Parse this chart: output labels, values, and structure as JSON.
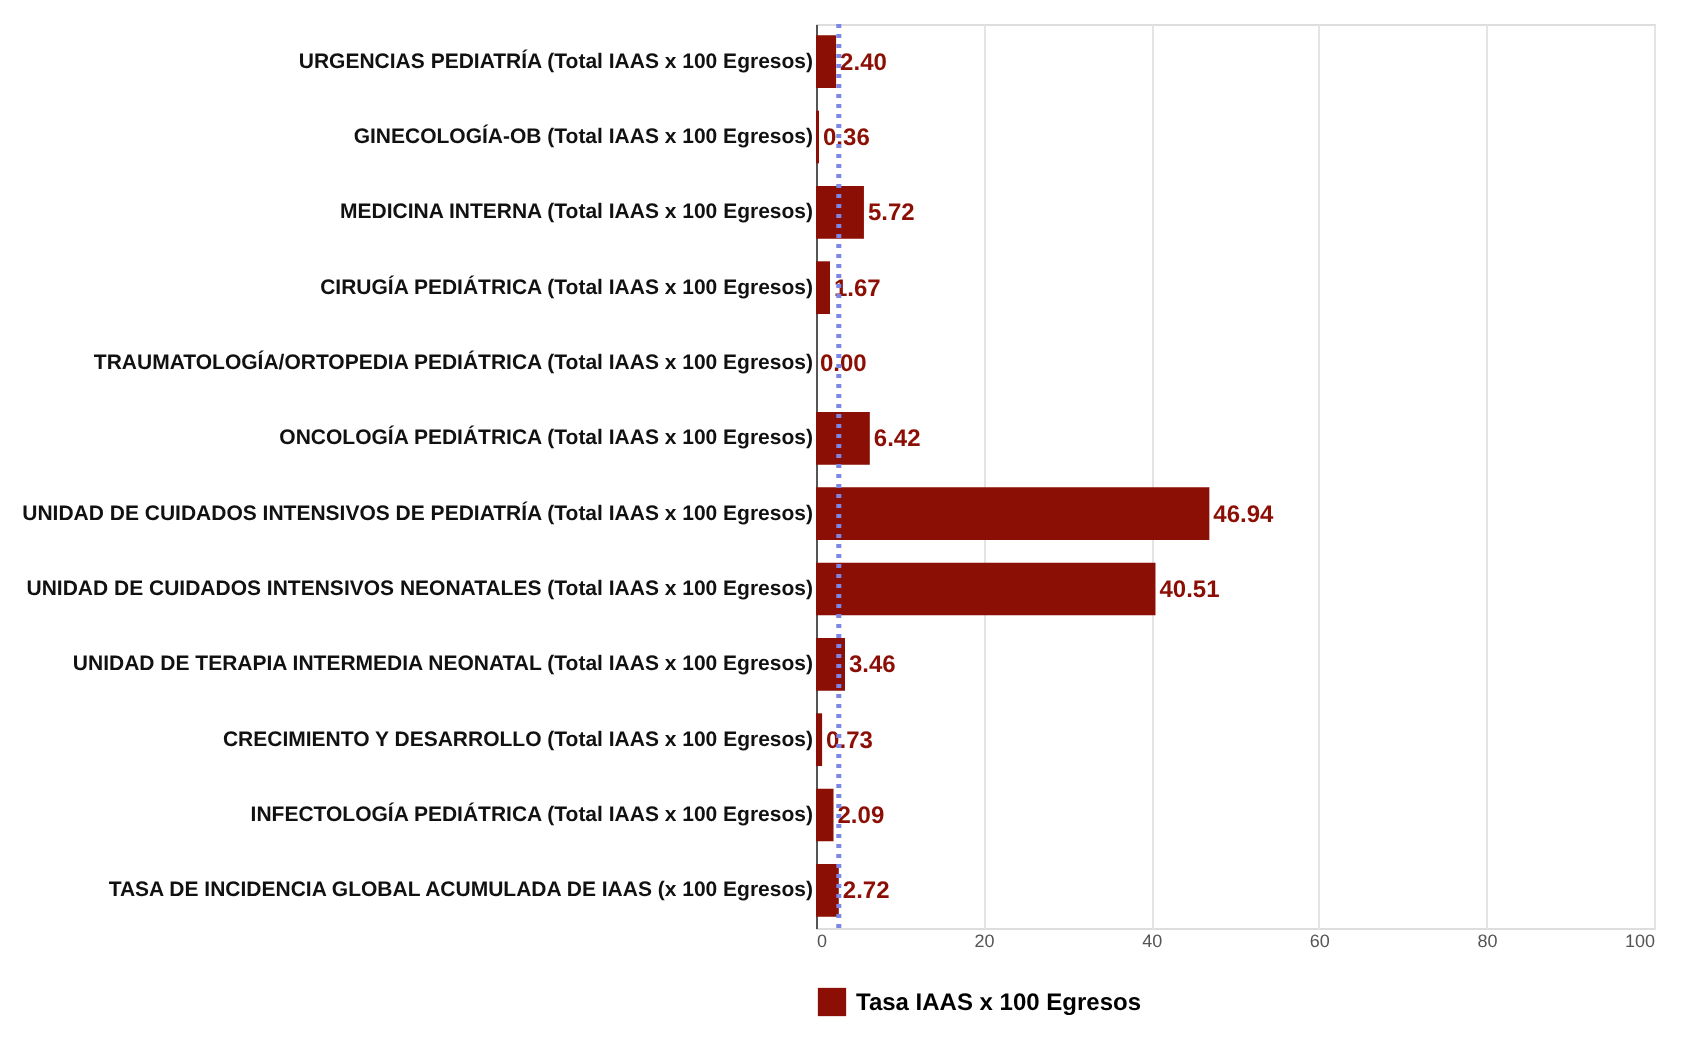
{
  "chart_data": {
    "type": "bar",
    "orientation": "horizontal",
    "categories": [
      "URGENCIAS PEDIATRÍA (Total IAAS x 100 Egresos)",
      "GINECOLOGÍA-OB (Total IAAS x 100 Egresos)",
      "MEDICINA INTERNA (Total IAAS x 100 Egresos)",
      "CIRUGÍA PEDIÁTRICA (Total IAAS x 100 Egresos)",
      "TRAUMATOLOGÍA/ORTOPEDIA PEDIÁTRICA (Total IAAS x 100 Egresos)",
      "ONCOLOGÍA PEDIÁTRICA (Total IAAS x 100 Egresos)",
      "UNIDAD DE CUIDADOS INTENSIVOS DE PEDIATRÍA (Total IAAS x 100 Egresos)",
      "UNIDAD DE CUIDADOS INTENSIVOS NEONATALES (Total IAAS x 100 Egresos)",
      "UNIDAD DE TERAPIA INTERMEDIA NEONATAL (Total IAAS x 100 Egresos)",
      "CRECIMIENTO Y DESARROLLO (Total IAAS x 100 Egresos)",
      "INFECTOLOGÍA PEDIÁTRICA (Total IAAS x 100 Egresos)",
      "TASA DE INCIDENCIA GLOBAL ACUMULADA DE IAAS (x 100 Egresos)"
    ],
    "series": [
      {
        "name": "Tasa IAAS x 100 Egresos",
        "color": "#8b0f05",
        "values": [
          2.4,
          0.36,
          5.72,
          1.67,
          0.0,
          6.42,
          46.94,
          40.51,
          3.46,
          0.73,
          2.09,
          2.72
        ],
        "value_labels": [
          "2.40",
          "0.36",
          "5.72",
          "1.67",
          "0.00",
          "6.42",
          "46.94",
          "40.51",
          "3.46",
          "0.73",
          "2.09",
          "2.72"
        ]
      }
    ],
    "xlim": [
      0,
      100
    ],
    "xticks": [
      0,
      20,
      40,
      60,
      80,
      100
    ],
    "ref_lines": [
      {
        "axis": "x",
        "value": 2.72,
        "color": "#7b86e8",
        "line_style": "dotted"
      }
    ],
    "grid": "x",
    "legend": "bottom"
  }
}
